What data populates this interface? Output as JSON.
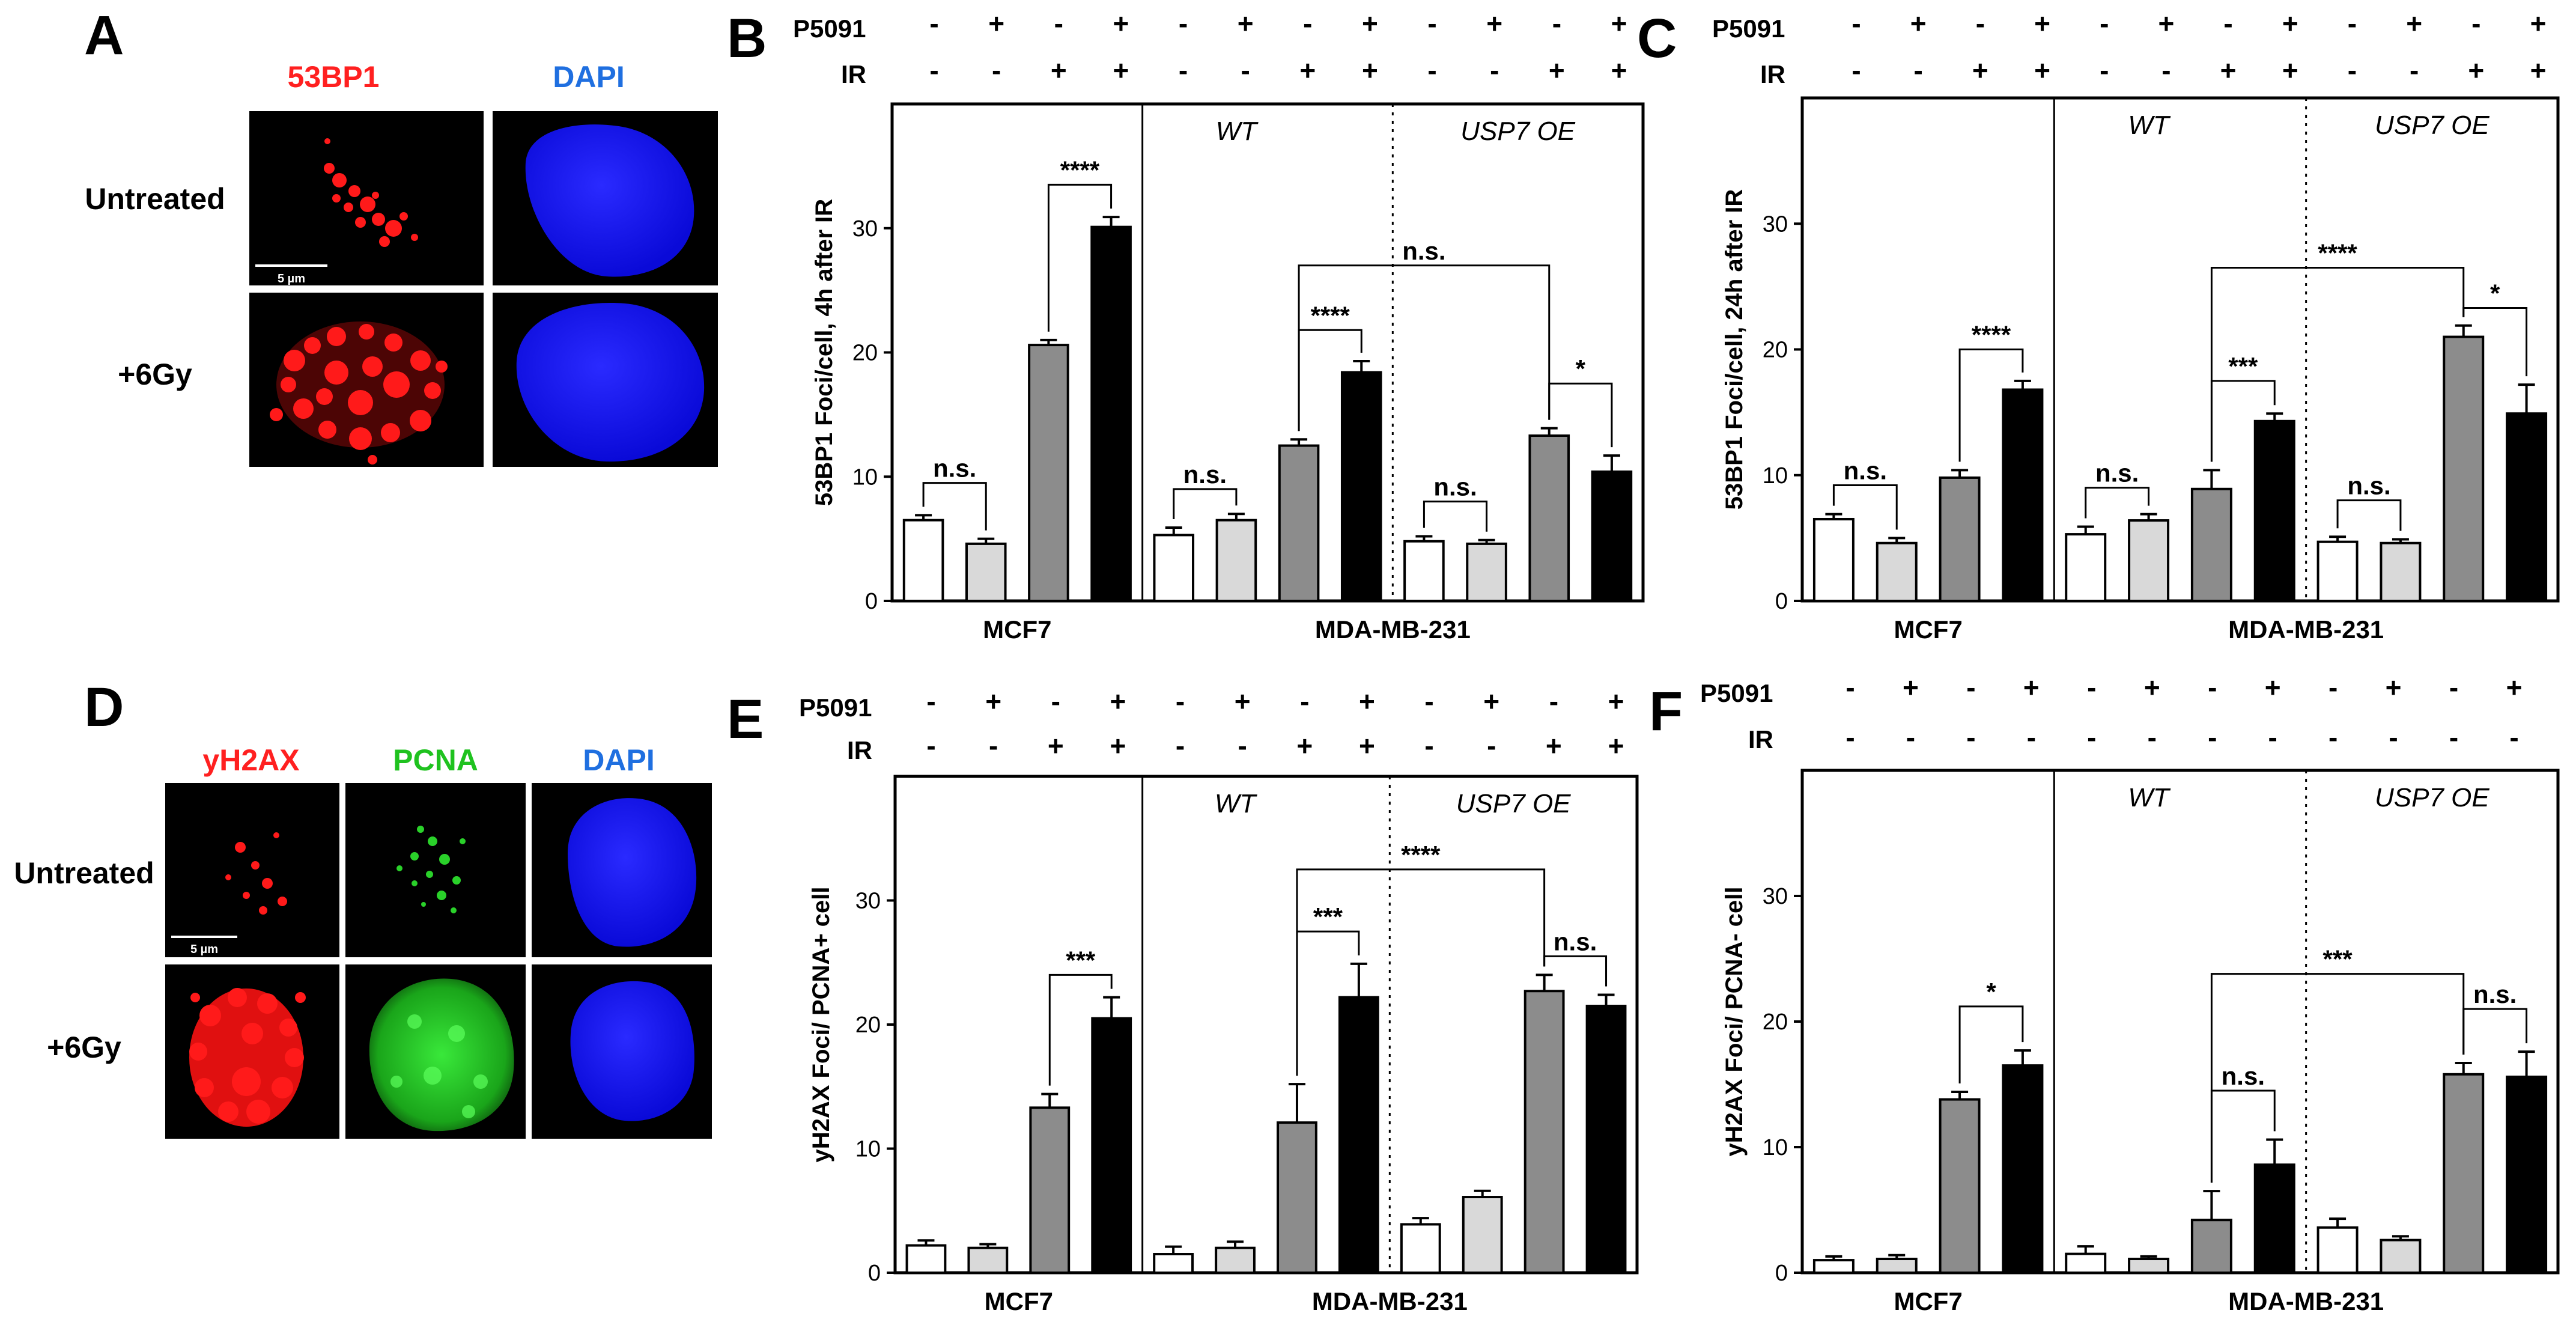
{
  "panel_labels": {
    "A": "A",
    "B": "B",
    "C": "C",
    "D": "D",
    "E": "E",
    "F": "F"
  },
  "micrographs": {
    "A": {
      "columns": [
        "53BP1",
        "DAPI"
      ],
      "column_colors": [
        "#ff2020",
        "#1f6fe0"
      ],
      "rows": [
        "Untreated",
        "+6Gy"
      ],
      "scale_bar": "5 µm"
    },
    "D": {
      "columns": [
        "yH2AX",
        "PCNA",
        "DAPI"
      ],
      "column_colors": [
        "#ff2020",
        "#1fc21f",
        "#1f6fe0"
      ],
      "rows": [
        "Untreated",
        "+6Gy"
      ],
      "scale_bar": "5 µm"
    }
  },
  "colors": {
    "bar_fills": [
      "#ffffff",
      "#d9d9d9",
      "#8c8c8c",
      "#000000"
    ],
    "stain_red": "#ff1a1a",
    "stain_green": "#2ad12a",
    "stain_blue": "#1414ff"
  },
  "chart_data": [
    {
      "panel": "B",
      "type": "bar",
      "ylabel": "53BP1 Foci/cell, 4h after IR",
      "ylim": [
        0,
        40
      ],
      "yticks": [
        0,
        10,
        20,
        30
      ],
      "condition_labels": [
        "P5091",
        "IR"
      ],
      "p5091": [
        "-",
        "+",
        "-",
        "+",
        "-",
        "+",
        "-",
        "+",
        "-",
        "+",
        "-",
        "+"
      ],
      "ir": [
        "-",
        "-",
        "+",
        "+",
        "-",
        "-",
        "+",
        "+",
        "-",
        "-",
        "+",
        "+"
      ],
      "groups": [
        "WT",
        "USP7 OE"
      ],
      "cell_lines": [
        "MCF7",
        "MDA-MB-231"
      ],
      "values": [
        6.5,
        4.6,
        20.6,
        30.1,
        5.3,
        6.5,
        12.5,
        18.4,
        4.8,
        4.6,
        13.3,
        10.4
      ],
      "errors": [
        0.4,
        0.4,
        0.4,
        0.8,
        0.6,
        0.5,
        0.5,
        0.9,
        0.4,
        0.3,
        0.6,
        1.3
      ],
      "comparisons": [
        {
          "from": 0,
          "to": 1,
          "y": 9.5,
          "label": "n.s."
        },
        {
          "from": 2,
          "to": 3,
          "y": 33.5,
          "label": "****"
        },
        {
          "from": 4,
          "to": 5,
          "y": 9.0,
          "label": "n.s."
        },
        {
          "from": 6,
          "to": 7,
          "y": 21.8,
          "label": "****"
        },
        {
          "from": 8,
          "to": 9,
          "y": 8.0,
          "label": "n.s."
        },
        {
          "from": 10,
          "to": 11,
          "y": 17.5,
          "label": "*"
        },
        {
          "from": 6,
          "to": 10,
          "y": 27.0,
          "label": "n.s."
        }
      ]
    },
    {
      "panel": "C",
      "type": "bar",
      "ylabel": "53BP1 Foci/cell, 24h after IR",
      "ylim": [
        0,
        40
      ],
      "yticks": [
        0,
        10,
        20,
        30
      ],
      "condition_labels": [
        "P5091",
        "IR"
      ],
      "p5091": [
        "-",
        "+",
        "-",
        "+",
        "-",
        "+",
        "-",
        "+",
        "-",
        "+",
        "-",
        "+"
      ],
      "ir": [
        "-",
        "-",
        "+",
        "+",
        "-",
        "-",
        "+",
        "+",
        "-",
        "-",
        "+",
        "+"
      ],
      "groups": [
        "WT",
        "USP7 OE"
      ],
      "cell_lines": [
        "MCF7",
        "MDA-MB-231"
      ],
      "values": [
        6.5,
        4.6,
        9.8,
        16.8,
        5.3,
        6.4,
        8.9,
        14.3,
        4.7,
        4.6,
        21.0,
        14.9
      ],
      "errors": [
        0.4,
        0.4,
        0.6,
        0.7,
        0.6,
        0.5,
        1.5,
        0.6,
        0.4,
        0.3,
        0.9,
        2.3
      ],
      "comparisons": [
        {
          "from": 0,
          "to": 1,
          "y": 9.2,
          "label": "n.s."
        },
        {
          "from": 2,
          "to": 3,
          "y": 20.0,
          "label": "****"
        },
        {
          "from": 4,
          "to": 5,
          "y": 9.0,
          "label": "n.s."
        },
        {
          "from": 6,
          "to": 7,
          "y": 17.5,
          "label": "***"
        },
        {
          "from": 8,
          "to": 9,
          "y": 8.0,
          "label": "n.s."
        },
        {
          "from": 10,
          "to": 11,
          "y": 23.3,
          "label": "*"
        },
        {
          "from": 6,
          "to": 10,
          "y": 26.5,
          "label": "****"
        }
      ]
    },
    {
      "panel": "E",
      "type": "bar",
      "ylabel": "yH2AX Foci/ PCNA+ cell",
      "ylim": [
        0,
        40
      ],
      "yticks": [
        0,
        10,
        20,
        30
      ],
      "condition_labels": [
        "P5091",
        "IR"
      ],
      "p5091": [
        "-",
        "+",
        "-",
        "+",
        "-",
        "+",
        "-",
        "+",
        "-",
        "+",
        "-",
        "+"
      ],
      "ir": [
        "-",
        "-",
        "+",
        "+",
        "-",
        "-",
        "+",
        "+",
        "-",
        "-",
        "+",
        "+"
      ],
      "groups": [
        "WT",
        "USP7 OE"
      ],
      "cell_lines": [
        "MCF7",
        "MDA-MB-231"
      ],
      "values": [
        2.2,
        2.0,
        13.3,
        20.5,
        1.5,
        2.0,
        12.1,
        22.2,
        3.9,
        6.1,
        22.7,
        21.5
      ],
      "errors": [
        0.4,
        0.3,
        1.1,
        1.7,
        0.6,
        0.5,
        3.1,
        2.7,
        0.5,
        0.5,
        1.3,
        0.9
      ],
      "comparisons": [
        {
          "from": 2,
          "to": 3,
          "y": 24.0,
          "label": "***"
        },
        {
          "from": 6,
          "to": 7,
          "y": 27.5,
          "label": "***"
        },
        {
          "from": 10,
          "to": 11,
          "y": 25.5,
          "label": "n.s."
        },
        {
          "from": 6,
          "to": 10,
          "y": 32.5,
          "label": "****"
        }
      ]
    },
    {
      "panel": "F",
      "type": "bar",
      "ylabel": "yH2AX Foci/ PCNA- cell",
      "ylim": [
        0,
        40
      ],
      "yticks": [
        0,
        10,
        20,
        30
      ],
      "condition_labels": [
        "P5091",
        "IR"
      ],
      "p5091": [
        "-",
        "+",
        "-",
        "+",
        "-",
        "+",
        "-",
        "+",
        "-",
        "+",
        "-",
        "+"
      ],
      "ir": [
        "-",
        "-",
        "-",
        "-",
        "-",
        "-",
        "-",
        "-",
        "-",
        "-",
        "-",
        "-"
      ],
      "groups": [
        "WT",
        "USP7 OE"
      ],
      "cell_lines": [
        "MCF7",
        "MDA-MB-231"
      ],
      "values": [
        1.0,
        1.1,
        13.8,
        16.5,
        1.5,
        1.1,
        4.2,
        8.6,
        3.6,
        2.6,
        15.8,
        15.6
      ],
      "errors": [
        0.3,
        0.3,
        0.6,
        1.2,
        0.6,
        0.2,
        2.3,
        2.0,
        0.7,
        0.3,
        0.9,
        2.0
      ],
      "comparisons": [
        {
          "from": 2,
          "to": 3,
          "y": 21.2,
          "label": "*"
        },
        {
          "from": 6,
          "to": 7,
          "y": 14.5,
          "label": "n.s."
        },
        {
          "from": 10,
          "to": 11,
          "y": 21.0,
          "label": "n.s."
        },
        {
          "from": 6,
          "to": 10,
          "y": 23.8,
          "label": "***"
        }
      ]
    }
  ]
}
